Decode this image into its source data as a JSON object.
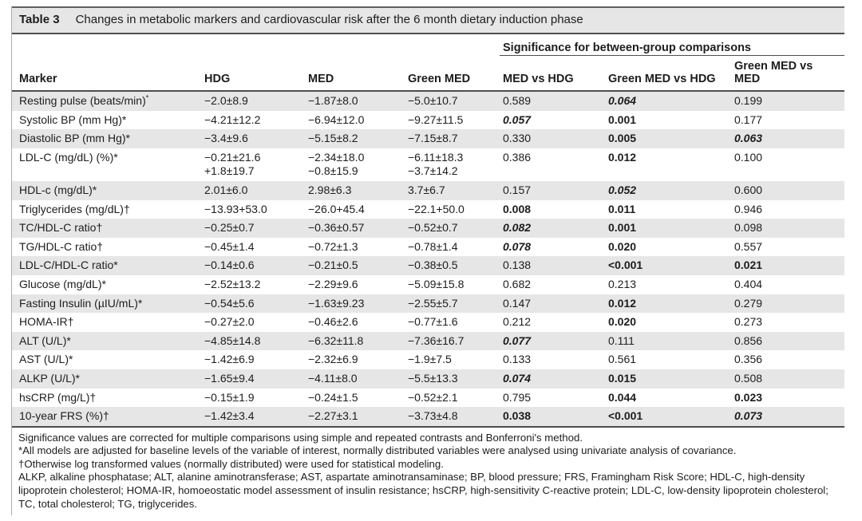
{
  "table": {
    "label": "Table 3",
    "title": "Changes in metabolic markers and cardiovascular risk after the 6 month dietary induction phase",
    "span_header": "Significance for between-group comparisons",
    "columns": [
      "Marker",
      "HDG",
      "MED",
      "Green MED",
      "MED vs HDG",
      "Green MED vs HDG",
      "Green MED vs MED"
    ],
    "rows": [
      {
        "marker": "Resting pulse (beats/min)",
        "sup": "*",
        "hdg": "−2.0±8.9",
        "med": "−1.87±8.0",
        "green_med": "−5.0±10.7",
        "sig": [
          {
            "v": "0.589",
            "s": "n"
          },
          {
            "v": "0.064",
            "s": "bi"
          },
          {
            "v": "0.199",
            "s": "n"
          }
        ]
      },
      {
        "marker": "Systolic BP (mm Hg)*",
        "hdg": "−4.21±12.2",
        "med": "−6.94±12.0",
        "green_med": "−9.27±11.5",
        "sig": [
          {
            "v": "0.057",
            "s": "bi"
          },
          {
            "v": "0.001",
            "s": "b"
          },
          {
            "v": "0.177",
            "s": "n"
          }
        ]
      },
      {
        "marker": "Diastolic BP (mm Hg)*",
        "hdg": "−3.4±9.6",
        "med": "−5.15±8.2",
        "green_med": "−7.15±8.7",
        "sig": [
          {
            "v": "0.330",
            "s": "n"
          },
          {
            "v": "0.005",
            "s": "b"
          },
          {
            "v": "0.063",
            "s": "bi"
          }
        ]
      },
      {
        "marker": "LDL-C (mg/dL) (%)*",
        "hdg": "−0.21±21.6\n+1.8±19.7",
        "med": "−2.34±18.0\n−0.8±15.9",
        "green_med": "−6.11±18.3\n−3.7±14.2",
        "sig": [
          {
            "v": "0.386",
            "s": "n"
          },
          {
            "v": "0.012",
            "s": "b"
          },
          {
            "v": "0.100",
            "s": "n"
          }
        ]
      },
      {
        "marker": "HDL-c (mg/dL)*",
        "hdg": "2.01±6.0",
        "med": "2.98±6.3",
        "green_med": "3.7±6.7",
        "sig": [
          {
            "v": "0.157",
            "s": "n"
          },
          {
            "v": "0.052",
            "s": "bi"
          },
          {
            "v": "0.600",
            "s": "n"
          }
        ]
      },
      {
        "marker": "Triglycerides (mg/dL)†",
        "hdg": "−13.93+53.0",
        "med": "−26.0+45.4",
        "green_med": "−22.1+50.0",
        "sig": [
          {
            "v": "0.008",
            "s": "b"
          },
          {
            "v": "0.011",
            "s": "b"
          },
          {
            "v": "0.946",
            "s": "n"
          }
        ]
      },
      {
        "marker": "TC/HDL-C ratio†",
        "hdg": "−0.25±0.7",
        "med": "−0.36±0.57",
        "green_med": "−0.52±0.7",
        "sig": [
          {
            "v": "0.082",
            "s": "bi"
          },
          {
            "v": "0.001",
            "s": "b"
          },
          {
            "v": "0.098",
            "s": "n"
          }
        ]
      },
      {
        "marker": "TG/HDL-C ratio†",
        "hdg": "−0.45±1.4",
        "med": "−0.72±1.3",
        "green_med": "−0.78±1.4",
        "sig": [
          {
            "v": "0.078",
            "s": "bi"
          },
          {
            "v": "0.020",
            "s": "b"
          },
          {
            "v": "0.557",
            "s": "n"
          }
        ]
      },
      {
        "marker": "LDL-C/HDL-C ratio*",
        "hdg": "−0.14±0.6",
        "med": "−0.21±0.5",
        "green_med": "−0.38±0.5",
        "sig": [
          {
            "v": "0.138",
            "s": "n"
          },
          {
            "v": "<0.001",
            "s": "b"
          },
          {
            "v": "0.021",
            "s": "b"
          }
        ]
      },
      {
        "marker": "Glucose (mg/dL)*",
        "hdg": "−2.52±13.2",
        "med": "−2.29±9.6",
        "green_med": "−5.09±15.8",
        "sig": [
          {
            "v": "0.682",
            "s": "n"
          },
          {
            "v": "0.213",
            "s": "n"
          },
          {
            "v": "0.404",
            "s": "n"
          }
        ]
      },
      {
        "marker": "Fasting Insulin (µIU/mL)*",
        "hdg": "−0.54±5.6",
        "med": "−1.63±9.23",
        "green_med": "−2.55±5.7",
        "sig": [
          {
            "v": "0.147",
            "s": "n"
          },
          {
            "v": "0.012",
            "s": "b"
          },
          {
            "v": "0.279",
            "s": "n"
          }
        ]
      },
      {
        "marker": "HOMA-IR†",
        "hdg": "−0.27±2.0",
        "med": "−0.46±2.6",
        "green_med": "−0.77±1.6",
        "sig": [
          {
            "v": "0.212",
            "s": "n"
          },
          {
            "v": "0.020",
            "s": "b"
          },
          {
            "v": "0.273",
            "s": "n"
          }
        ]
      },
      {
        "marker": "ALT (U/L)*",
        "hdg": "−4.85±14.8",
        "med": "−6.32±11.8",
        "green_med": "−7.36±16.7",
        "sig": [
          {
            "v": "0.077",
            "s": "bi"
          },
          {
            "v": "0.111",
            "s": "n"
          },
          {
            "v": "0.856",
            "s": "n"
          }
        ]
      },
      {
        "marker": "AST (U/L)*",
        "hdg": "−1.42±6.9",
        "med": "−2.32±6.9",
        "green_med": "−1.9±7.5",
        "sig": [
          {
            "v": "0.133",
            "s": "n"
          },
          {
            "v": "0.561",
            "s": "n"
          },
          {
            "v": "0.356",
            "s": "n"
          }
        ]
      },
      {
        "marker": "ALKP (U/L)*",
        "hdg": "−1.65±9.4",
        "med": "−4.11±8.0",
        "green_med": "−5.5±13.3",
        "sig": [
          {
            "v": "0.074",
            "s": "bi"
          },
          {
            "v": "0.015",
            "s": "b"
          },
          {
            "v": "0.508",
            "s": "n"
          }
        ]
      },
      {
        "marker": "hsCRP (mg/L)†",
        "hdg": "−0.15±1.9",
        "med": "−0.24±1.5",
        "green_med": "−0.52±2.1",
        "sig": [
          {
            "v": "0.795",
            "s": "n"
          },
          {
            "v": "0.044",
            "s": "b"
          },
          {
            "v": "0.023",
            "s": "b"
          }
        ]
      },
      {
        "marker": "10-year FRS (%)†",
        "hdg": "−1.42±3.4",
        "med": "−2.27±3.1",
        "green_med": "−3.73±4.8",
        "sig": [
          {
            "v": "0.038",
            "s": "b"
          },
          {
            "v": "<0.001",
            "s": "b"
          },
          {
            "v": "0.073",
            "s": "bi"
          }
        ]
      }
    ],
    "footnotes": [
      "Significance values are corrected for multiple comparisons using simple and repeated contrasts and Bonferroni's method.",
      "*All models are adjusted for baseline levels of the variable of interest, normally distributed variables were analysed using univariate analysis of covariance.",
      "†Otherwise log transformed values (normally distributed) were used for statistical modeling.",
      "ALKP, alkaline phosphatase; ALT, alanine aminotransferase; AST, aspartate aminotransaminase; BP, blood pressure; FRS, Framingham Risk Score; HDL-C, high-density lipoprotein cholesterol; HOMA-IR, homoeostatic model assessment of insulin resistance; hsCRP, high-sensitivity C-reactive protein; LDL-C, low-density lipoprotein cholesterol; TC, total cholesterol; TG, triglycerides."
    ]
  },
  "colors": {
    "row_shade": "#e6e6e6",
    "title_bar_bg": "#e6e6e6",
    "rule_dark": "#4e4e4e",
    "text": "#1d1d1d"
  }
}
